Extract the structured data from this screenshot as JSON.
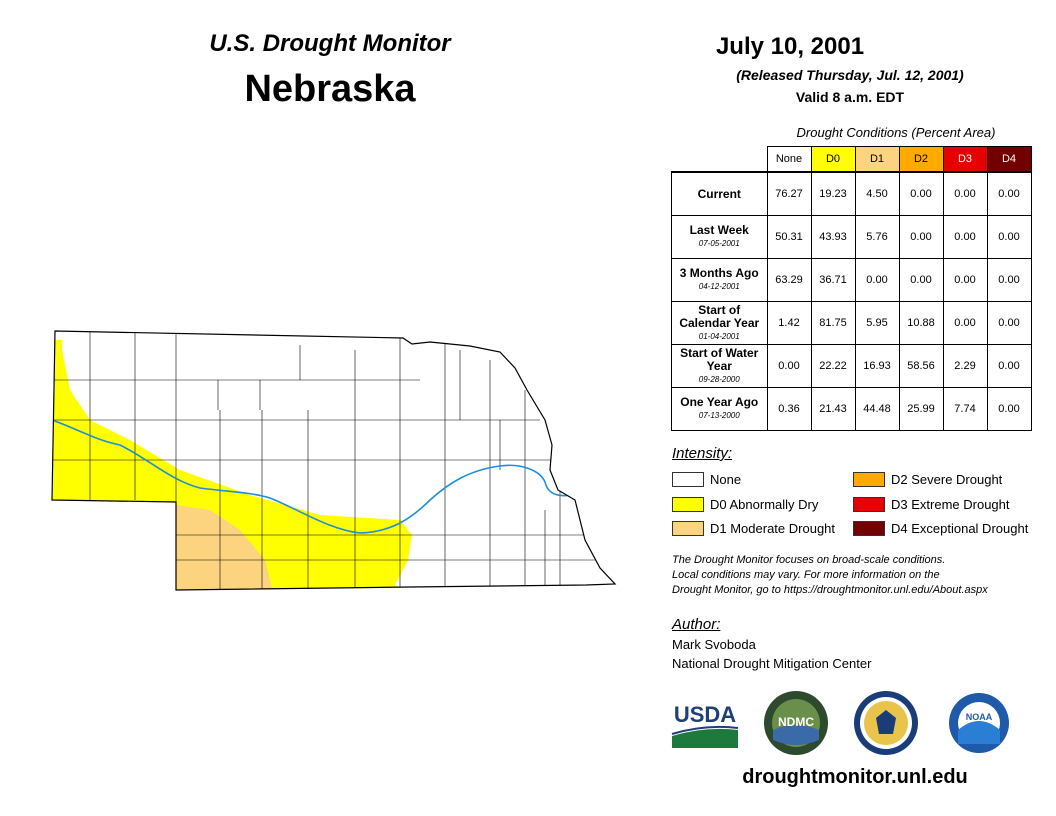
{
  "header": {
    "title": "U.S. Drought Monitor",
    "region": "Nebraska",
    "date": "July 10, 2001",
    "released": "(Released Thursday, Jul. 12, 2001)",
    "valid": "Valid 8 a.m. EDT"
  },
  "table": {
    "caption": "Drought Conditions (Percent Area)",
    "columns": [
      "None",
      "D0",
      "D1",
      "D2",
      "D3",
      "D4"
    ],
    "column_colors": [
      "#ffffff",
      "#ffff00",
      "#fcd37f",
      "#ffaa00",
      "#e60000",
      "#730000"
    ],
    "rows": [
      {
        "label": "Current",
        "date": "",
        "values": [
          "76.27",
          "19.23",
          "4.50",
          "0.00",
          "0.00",
          "0.00"
        ]
      },
      {
        "label": "Last Week",
        "date": "07-05-2001",
        "values": [
          "50.31",
          "43.93",
          "5.76",
          "0.00",
          "0.00",
          "0.00"
        ]
      },
      {
        "label": "3 Months Ago",
        "date": "04-12-2001",
        "values": [
          "63.29",
          "36.71",
          "0.00",
          "0.00",
          "0.00",
          "0.00"
        ]
      },
      {
        "label": "Start of Calendar Year",
        "date": "01-04-2001",
        "values": [
          "1.42",
          "81.75",
          "5.95",
          "10.88",
          "0.00",
          "0.00"
        ]
      },
      {
        "label": "Start of Water Year",
        "date": "09-28-2000",
        "values": [
          "0.00",
          "22.22",
          "16.93",
          "58.56",
          "2.29",
          "0.00"
        ]
      },
      {
        "label": "One Year Ago",
        "date": "07-13-2000",
        "values": [
          "0.36",
          "21.43",
          "44.48",
          "25.99",
          "7.74",
          "0.00"
        ]
      }
    ]
  },
  "legend": {
    "title": "Intensity:",
    "items": [
      {
        "label": "None",
        "color": "#ffffff"
      },
      {
        "label": "D0 Abnormally Dry",
        "color": "#ffff00"
      },
      {
        "label": "D1 Moderate Drought",
        "color": "#fcd37f"
      },
      {
        "label": "D2 Severe Drought",
        "color": "#ffaa00"
      },
      {
        "label": "D3 Extreme Drought",
        "color": "#e60000"
      },
      {
        "label": "D4 Exceptional Drought",
        "color": "#730000"
      }
    ]
  },
  "disclaimer": {
    "line1": "The Drought Monitor focuses on broad-scale conditions.",
    "line2": "Local conditions may vary. For more information on the",
    "line3": "Drought Monitor, go to https://droughtmonitor.unl.edu/About.aspx"
  },
  "author": {
    "title": "Author:",
    "name": "Mark Svoboda",
    "org": "National Drought Mitigation Center"
  },
  "logos": {
    "usda": "USDA",
    "ndmc": "NDMC",
    "noaa": "NOAA"
  },
  "footer": {
    "url": "droughtmonitor.unl.edu"
  },
  "map": {
    "river_color": "#1e8fd6",
    "d0_color": "#ffff00",
    "d1_color": "#fcd37f"
  }
}
